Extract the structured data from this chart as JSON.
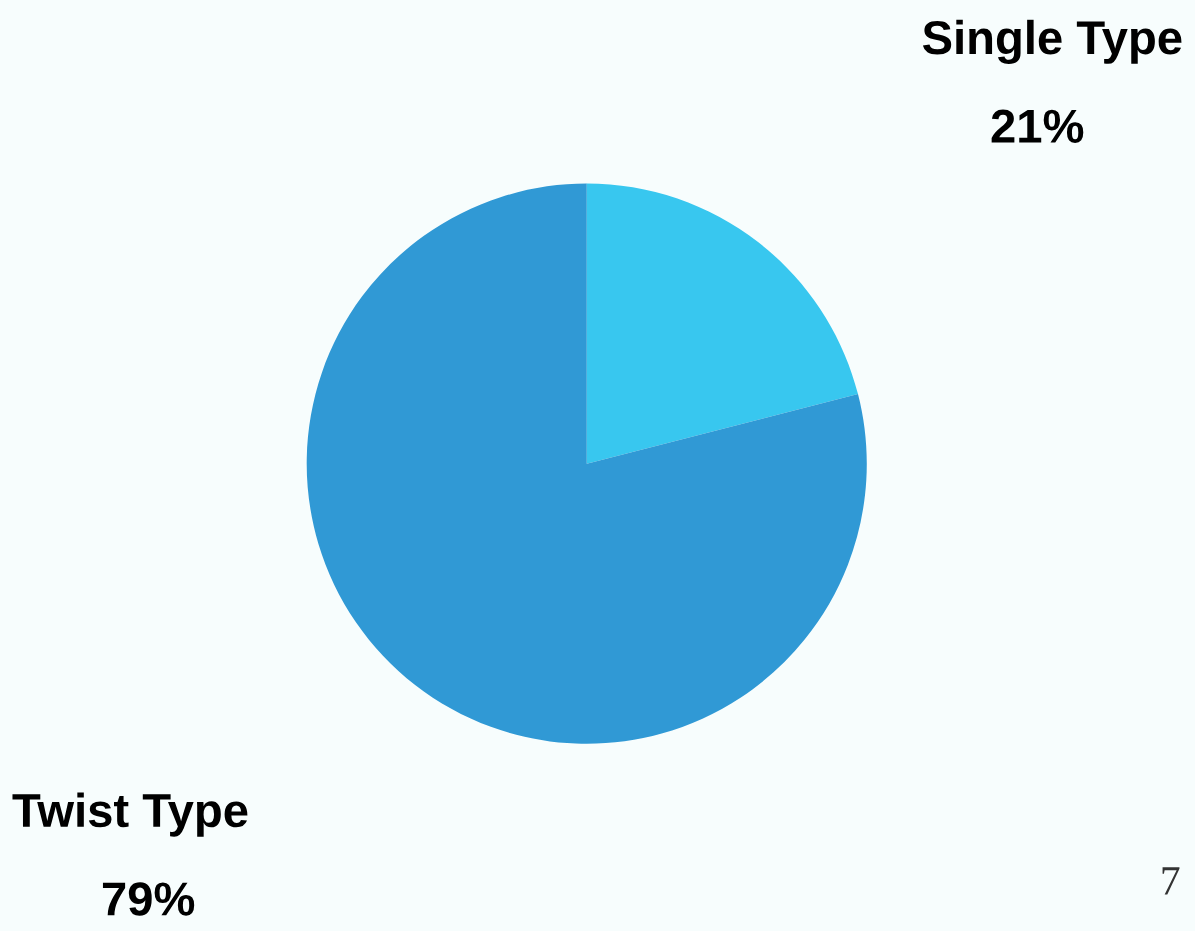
{
  "chart_data": {
    "type": "pie",
    "categories": [
      "Single Type",
      "Twist Type"
    ],
    "values": [
      21,
      79
    ],
    "value_labels": [
      "21%",
      "79%"
    ],
    "colors": [
      "#38c7ef",
      "#3099d5"
    ],
    "annotations": [
      "7"
    ]
  }
}
